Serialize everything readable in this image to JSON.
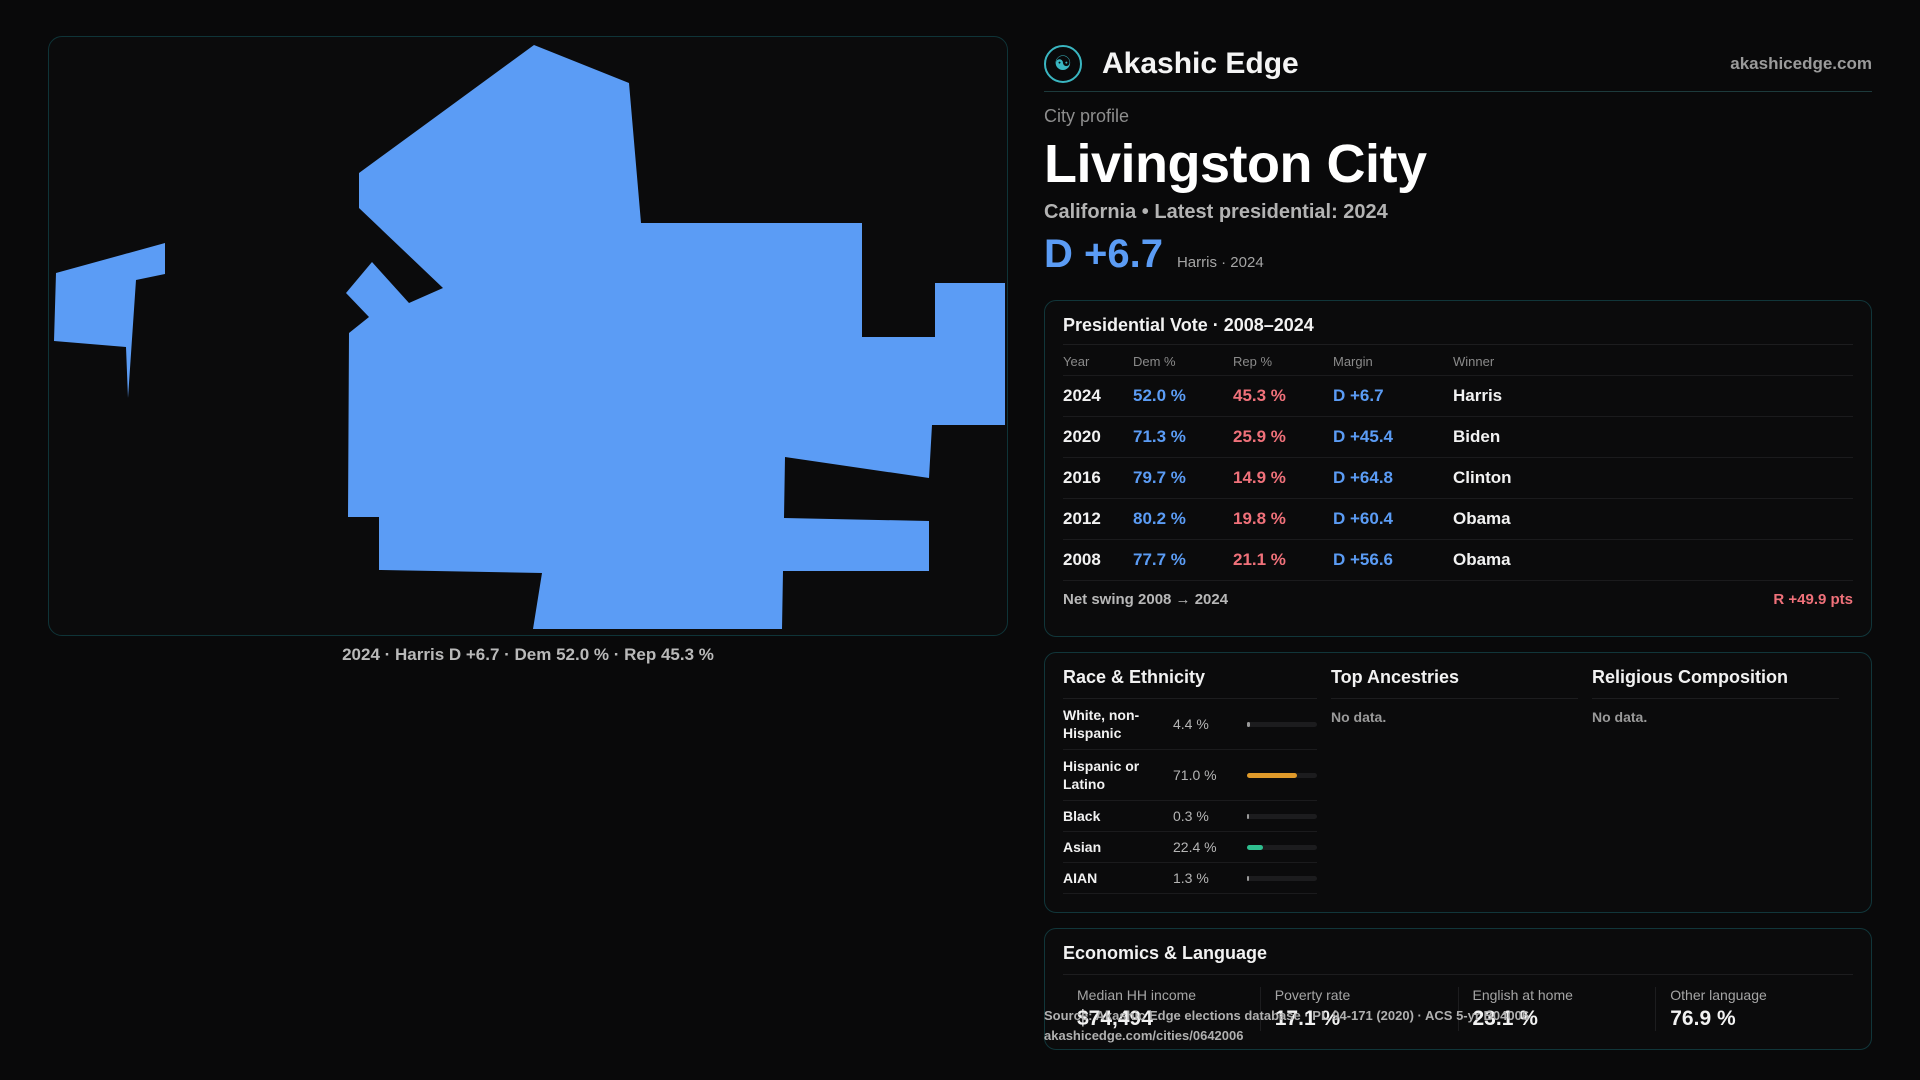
{
  "map": {
    "fill_color": "#5b9cf5",
    "caption": "2024 · Harris D +6.7 · Dem 52.0 % · Rep 45.3 %"
  },
  "brand": {
    "name": "Akashic Edge",
    "url": "akashicedge.com",
    "logo_icon": "figure-in-circle-icon"
  },
  "profile": {
    "kicker": "City profile",
    "city": "Livingston City",
    "subtitle": "California • Latest presidential: 2024",
    "margin": "D +6.7",
    "margin_note": "Harris · 2024"
  },
  "vote": {
    "title": "Presidential Vote · 2008–2024",
    "headers": [
      "Year",
      "Dem %",
      "Rep %",
      "Margin",
      "Winner"
    ],
    "rows": [
      {
        "year": "2024",
        "dem": "52.0 %",
        "rep": "45.3 %",
        "margin": "D +6.7",
        "winner": "Harris"
      },
      {
        "year": "2020",
        "dem": "71.3 %",
        "rep": "25.9 %",
        "margin": "D +45.4",
        "winner": "Biden"
      },
      {
        "year": "2016",
        "dem": "79.7 %",
        "rep": "14.9 %",
        "margin": "D +64.8",
        "winner": "Clinton"
      },
      {
        "year": "2012",
        "dem": "80.2 %",
        "rep": "19.8 %",
        "margin": "D +60.4",
        "winner": "Obama"
      },
      {
        "year": "2008",
        "dem": "77.7 %",
        "rep": "21.1 %",
        "margin": "D +56.6",
        "winner": "Obama"
      }
    ],
    "swing_label": "Net swing 2008 → 2024",
    "swing_value": "R +49.9 pts"
  },
  "race": {
    "title": "Race & Ethnicity",
    "rows": [
      {
        "label": "White, non-Hispanic",
        "pct": "4.4 %",
        "share": 0.044,
        "color": "#9a9a9a"
      },
      {
        "label": "Hispanic or Latino",
        "pct": "71.0 %",
        "share": 0.71,
        "color": "#e09a2a"
      },
      {
        "label": "Black",
        "pct": "0.3 %",
        "share": 0.003,
        "color": "#9a9a9a"
      },
      {
        "label": "Asian",
        "pct": "22.4 %",
        "share": 0.224,
        "color": "#2fbf8f"
      },
      {
        "label": "AIAN",
        "pct": "1.3 %",
        "share": 0.013,
        "color": "#9a9a9a"
      }
    ]
  },
  "ancestries": {
    "title": "Top Ancestries",
    "empty": "No data."
  },
  "religion": {
    "title": "Religious Composition",
    "empty": "No data."
  },
  "econ": {
    "title": "Economics & Language",
    "cells": [
      {
        "label": "Median HH income",
        "value": "$74,494"
      },
      {
        "label": "Poverty rate",
        "value": "17.1 %"
      },
      {
        "label": "English at home",
        "value": "23.1 %"
      },
      {
        "label": "Other language",
        "value": "76.9 %"
      }
    ]
  },
  "source": {
    "line1": "Source: Akashic Edge elections database · PL 94-171 (2020) · ACS 5-yr B04006",
    "line2": "akashicedge.com/cities/0642006"
  }
}
